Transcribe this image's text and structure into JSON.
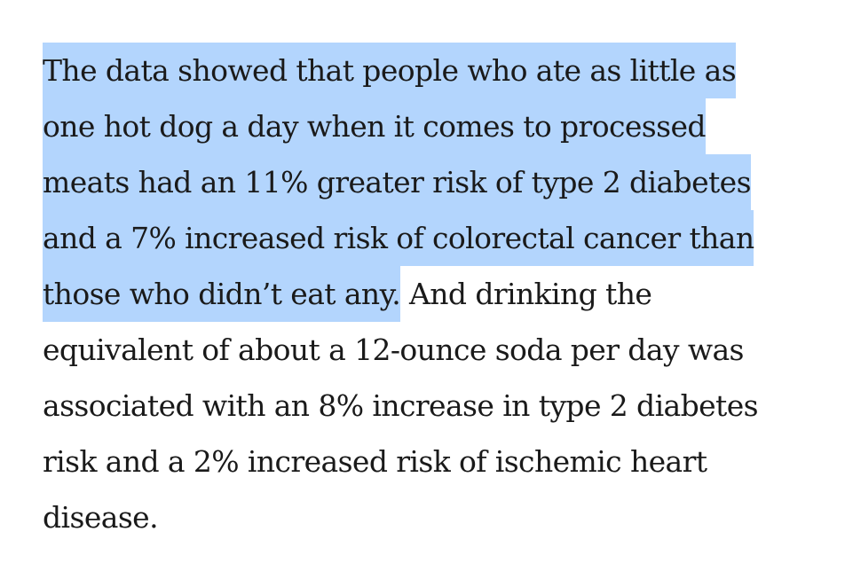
{
  "article": {
    "paragraph": {
      "lines": [
        {
          "highlighted": "The data showed that people who ate as little as ",
          "plain": ""
        },
        {
          "highlighted": "one hot dog a day when it comes to processed ",
          "plain": ""
        },
        {
          "highlighted": "meats had an 11% greater risk of type 2 diabetes ",
          "plain": ""
        },
        {
          "highlighted": "and a 7% increased risk of colorectal cancer than",
          "plain": ""
        },
        {
          "highlighted": "those who didn’t eat any.",
          "plain": " And drinking the"
        },
        {
          "highlighted": "",
          "plain": "equivalent of about a 12-ounce soda per day was"
        },
        {
          "highlighted": "",
          "plain": "associated with an 8% increase in type 2 diabetes"
        },
        {
          "highlighted": "",
          "plain": "risk and a 2% increased risk of ischemic heart"
        },
        {
          "highlighted": "",
          "plain": "disease."
        }
      ]
    },
    "highlight_color": "#b3d5fd",
    "text_color": "#1a1a1a"
  }
}
